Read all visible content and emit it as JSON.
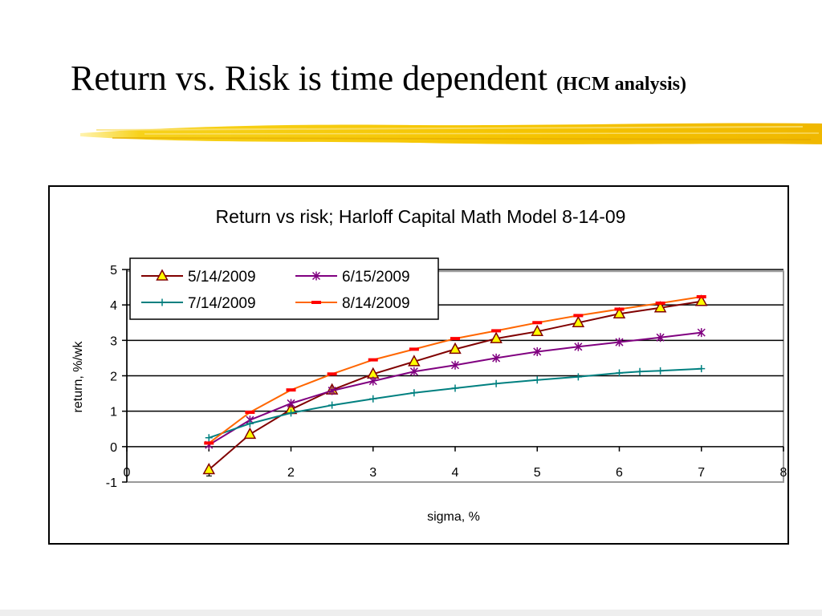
{
  "slide": {
    "title": "Return vs. Risk is time dependent",
    "subtitle": "(HCM analysis)"
  },
  "colors": {
    "brush": "#f5c400",
    "gridline": "#000000",
    "plot_border": "#999999"
  },
  "chart_data": {
    "type": "line",
    "title": "Return vs risk; Harloff Capital Math Model 8-14-09",
    "xlabel": "sigma, %",
    "ylabel": "return, %/wk",
    "xlim": [
      0,
      8
    ],
    "ylim": [
      -1,
      5
    ],
    "xticks": [
      0,
      1,
      2,
      3,
      4,
      5,
      6,
      7,
      8
    ],
    "yticks": [
      -1,
      0,
      1,
      2,
      3,
      4,
      5
    ],
    "grid": "horizontal",
    "legend_position": "top-left",
    "series": [
      {
        "name": "5/14/2009",
        "color": "#800000",
        "marker": "triangle",
        "marker_fill": "#ffff00",
        "x": [
          1,
          1.5,
          2,
          2.5,
          3,
          3.5,
          4,
          4.5,
          5,
          5.5,
          6,
          6.5,
          7
        ],
        "y": [
          -0.65,
          0.35,
          1.05,
          1.6,
          2.05,
          2.4,
          2.75,
          3.05,
          3.25,
          3.5,
          3.75,
          3.92,
          4.1
        ]
      },
      {
        "name": "6/15/2009",
        "color": "#800080",
        "marker": "asterisk",
        "x": [
          1,
          1.5,
          2,
          2.5,
          3,
          3.5,
          4,
          4.5,
          5,
          5.5,
          6,
          6.5,
          7
        ],
        "y": [
          0.05,
          0.75,
          1.22,
          1.58,
          1.85,
          2.12,
          2.3,
          2.5,
          2.68,
          2.82,
          2.95,
          3.08,
          3.22
        ]
      },
      {
        "name": "7/14/2009",
        "color": "#008080",
        "marker": "plus",
        "x": [
          1,
          1.5,
          2,
          2.5,
          3,
          3.5,
          4,
          4.5,
          5,
          5.5,
          6,
          6.25,
          6.5,
          7
        ],
        "y": [
          0.25,
          0.65,
          0.95,
          1.17,
          1.35,
          1.52,
          1.65,
          1.78,
          1.88,
          1.97,
          2.08,
          2.12,
          2.14,
          2.2
        ]
      },
      {
        "name": "8/14/2009",
        "color": "#ff6600",
        "marker": "dash",
        "marker_color": "#ff0000",
        "x": [
          1,
          1.5,
          2,
          2.5,
          3,
          3.5,
          4,
          4.5,
          5,
          5.5,
          6,
          6.5,
          7
        ],
        "y": [
          0.1,
          0.97,
          1.6,
          2.05,
          2.45,
          2.75,
          3.05,
          3.27,
          3.5,
          3.7,
          3.88,
          4.05,
          4.23
        ]
      }
    ]
  }
}
